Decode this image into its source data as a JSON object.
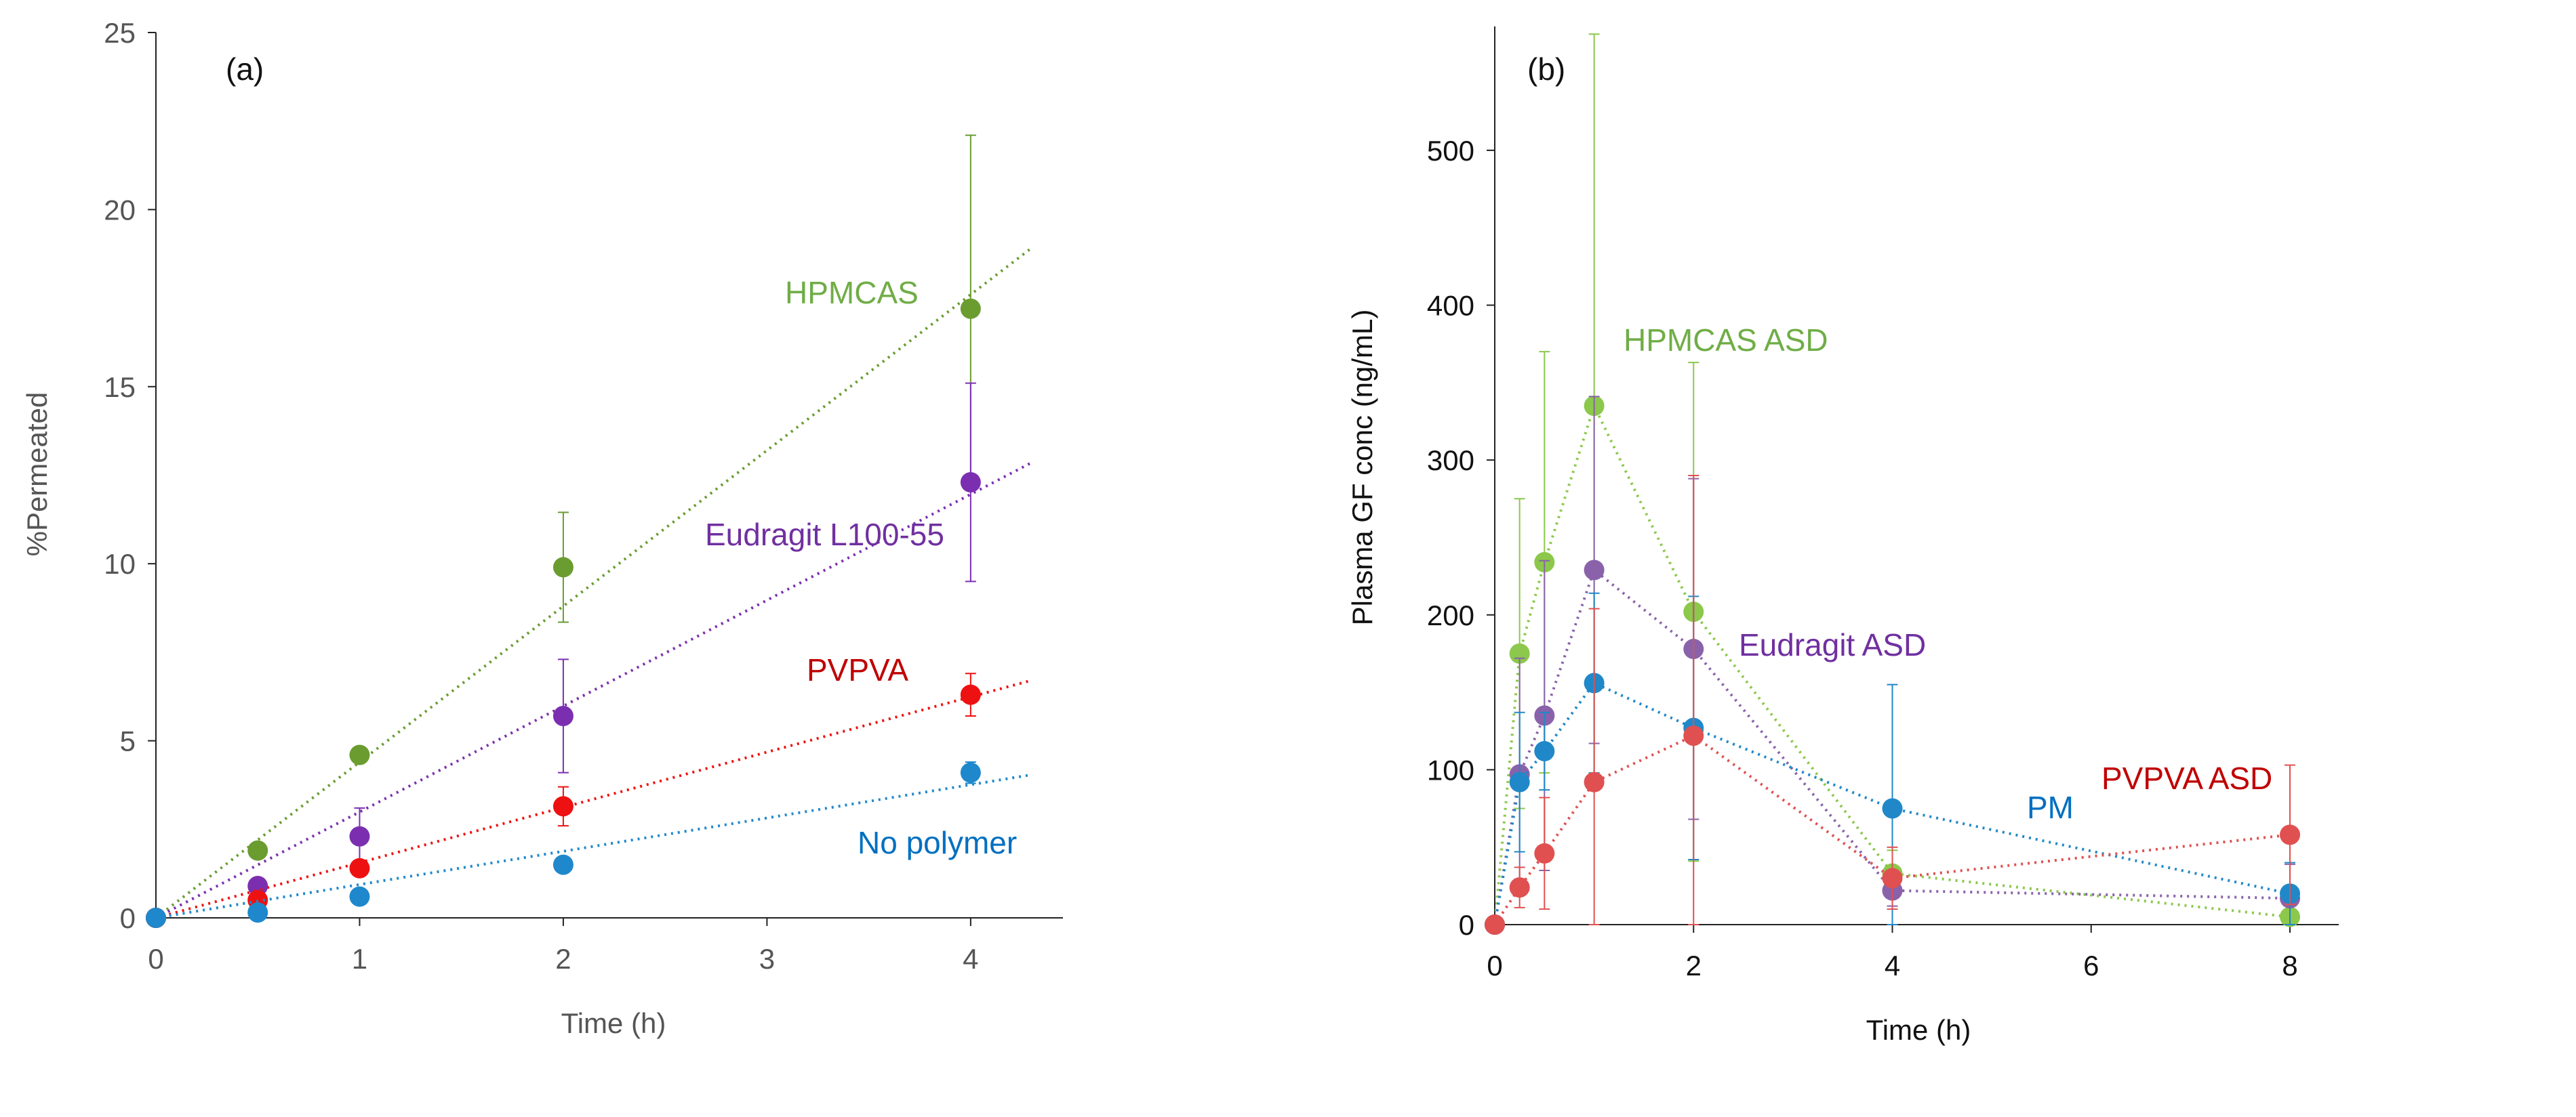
{
  "chart_data": [
    {
      "type": "scatter",
      "panel_label": "(a)",
      "xlabel": "Time (h)",
      "ylabel": "%Permeated",
      "xlim": [
        0,
        4.3
      ],
      "ylim": [
        0,
        25
      ],
      "xticks": [
        "0",
        "1",
        "2",
        "3",
        "4"
      ],
      "yticks": [
        "0",
        "5",
        "10",
        "15",
        "20",
        "25"
      ],
      "grid": false,
      "series": [
        {
          "name": "HPMCAS",
          "color": "#6A9C30",
          "label_color": "#70AD47",
          "trend_slope": 4.4,
          "points": [
            {
              "x": 0,
              "y": 0,
              "err": 0
            },
            {
              "x": 0.5,
              "y": 1.9,
              "err": 0.1
            },
            {
              "x": 1,
              "y": 4.6,
              "err": 0.1
            },
            {
              "x": 2,
              "y": 9.9,
              "err": 1.55
            },
            {
              "x": 4,
              "y": 17.2,
              "err": 4.9
            }
          ]
        },
        {
          "name": "Eudragit L100-55",
          "color": "#7B2FB0",
          "label_color": "#7030A0",
          "trend_slope": 2.99,
          "points": [
            {
              "x": 0,
              "y": 0,
              "err": 0
            },
            {
              "x": 0.5,
              "y": 0.9,
              "err": 0.1
            },
            {
              "x": 1,
              "y": 2.3,
              "err": 0.8
            },
            {
              "x": 2,
              "y": 5.7,
              "err": 1.6
            },
            {
              "x": 4,
              "y": 12.3,
              "err": 2.8
            }
          ]
        },
        {
          "name": "PVPVA",
          "color": "#EE1111",
          "label_color": "#C00000",
          "trend_slope": 1.56,
          "points": [
            {
              "x": 0,
              "y": 0,
              "err": 0
            },
            {
              "x": 0.5,
              "y": 0.5,
              "err": 0.1
            },
            {
              "x": 1,
              "y": 1.4,
              "err": 0.1
            },
            {
              "x": 2,
              "y": 3.15,
              "err": 0.55
            },
            {
              "x": 4,
              "y": 6.3,
              "err": 0.6
            }
          ]
        },
        {
          "name": "No polymer",
          "color": "#1F88CC",
          "label_color": "#0070C0",
          "trend_slope": 0.94,
          "points": [
            {
              "x": 0,
              "y": 0,
              "err": 0
            },
            {
              "x": 0.5,
              "y": 0.15,
              "err": 0.05
            },
            {
              "x": 1,
              "y": 0.6,
              "err": 0.1
            },
            {
              "x": 2,
              "y": 1.5,
              "err": 0.1
            },
            {
              "x": 4,
              "y": 4.1,
              "err": 0.3
            }
          ]
        }
      ]
    },
    {
      "type": "line",
      "panel_label": "(b)",
      "xlabel": "Time (h)",
      "ylabel": "Plasma GF  conc (ng/mL)",
      "xlim": [
        0,
        8.6
      ],
      "ylim": [
        0,
        580
      ],
      "xticks": [
        "0",
        "2",
        "4",
        "6",
        "8"
      ],
      "yticks": [
        "0",
        "100",
        "200",
        "300",
        "400",
        "500"
      ],
      "grid": false,
      "series": [
        {
          "name": "HPMCAS ASD",
          "color": "#8CC84B",
          "label_color": "#70AD47",
          "points": [
            {
              "x": 0,
              "y": 0,
              "err": 0
            },
            {
              "x": 0.25,
              "y": 175,
              "err": 100
            },
            {
              "x": 0.5,
              "y": 234,
              "err": 136
            },
            {
              "x": 1,
              "y": 335,
              "err": 240
            },
            {
              "x": 2,
              "y": 202,
              "err": 161
            },
            {
              "x": 4,
              "y": 33,
              "err": 15
            },
            {
              "x": 8,
              "y": 5,
              "err": 3
            }
          ]
        },
        {
          "name": "Eudragit ASD",
          "color": "#8A62AA",
          "label_color": "#7030A0",
          "points": [
            {
              "x": 0,
              "y": 0,
              "err": 0
            },
            {
              "x": 0.25,
              "y": 97,
              "err": 75
            },
            {
              "x": 0.5,
              "y": 135,
              "err": 100
            },
            {
              "x": 1,
              "y": 229,
              "err": 112
            },
            {
              "x": 2,
              "y": 178,
              "err": 110
            },
            {
              "x": 4,
              "y": 22,
              "err": 10
            },
            {
              "x": 8,
              "y": 17,
              "err": 22
            }
          ]
        },
        {
          "name": "PM",
          "color": "#2088C8",
          "label_color": "#0070C0",
          "points": [
            {
              "x": 0,
              "y": 0,
              "err": 0
            },
            {
              "x": 0.25,
              "y": 92,
              "err": 45
            },
            {
              "x": 0.5,
              "y": 112,
              "err": 25
            },
            {
              "x": 1,
              "y": 156,
              "err": 58
            },
            {
              "x": 2,
              "y": 127,
              "err": 85
            },
            {
              "x": 4,
              "y": 75,
              "err": 80
            },
            {
              "x": 8,
              "y": 20,
              "err": 20
            }
          ]
        },
        {
          "name": "PVPVA ASD",
          "color": "#E05050",
          "label_color": "#C00000",
          "points": [
            {
              "x": 0,
              "y": 0,
              "err": 0
            },
            {
              "x": 0.25,
              "y": 24,
              "err": 13
            },
            {
              "x": 0.5,
              "y": 46,
              "err": 36
            },
            {
              "x": 1,
              "y": 92,
              "err": 112
            },
            {
              "x": 2,
              "y": 122,
              "err": 168
            },
            {
              "x": 4,
              "y": 30,
              "err": 20
            },
            {
              "x": 8,
              "y": 58,
              "err": 45
            }
          ]
        }
      ]
    }
  ]
}
